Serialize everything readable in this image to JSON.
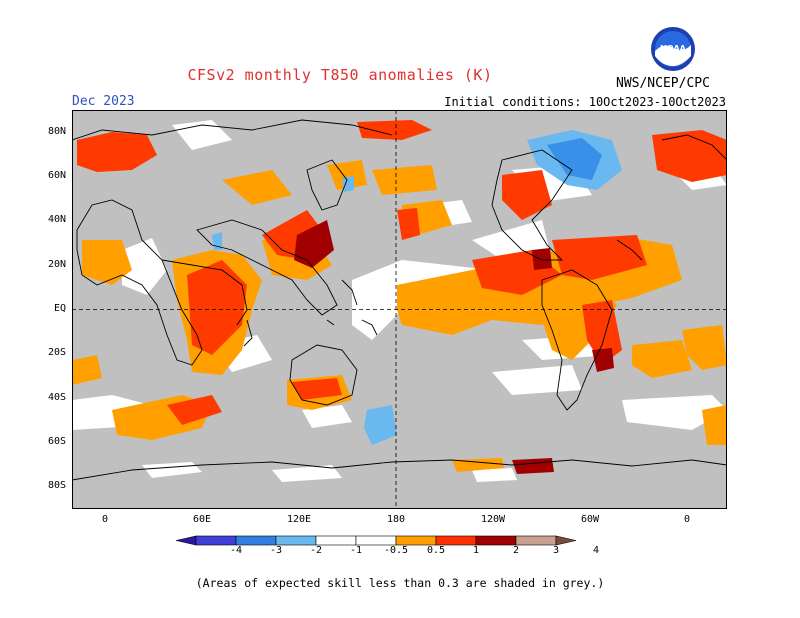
{
  "title": "CFSv2 monthly T850 anomalies (K)",
  "month": "Dec 2023",
  "initial_conditions": "Initial conditions: 10Oct2023-10Oct2023",
  "agency": "NWS/NCEP/CPC",
  "logo_text": "NOAA",
  "lat_labels": [
    "80N",
    "60N",
    "40N",
    "20N",
    "EQ",
    "20S",
    "40S",
    "60S",
    "80S"
  ],
  "lon_labels": [
    "0",
    "60E",
    "120E",
    "180",
    "120W",
    "60W",
    "0"
  ],
  "legend": {
    "labels": [
      "-4",
      "-3",
      "-2",
      "-1",
      "-0.5",
      "0.5",
      "1",
      "2",
      "3",
      "4"
    ],
    "colors": [
      "#2a18a0",
      "#4040d8",
      "#3080e0",
      "#6ab8f0",
      "#ffffff",
      "#ffffff",
      "#ffa000",
      "#ff3000",
      "#a00000",
      "#c8a090",
      "#7a4a3a"
    ]
  },
  "footnote": "(Areas of expected skill less than 0.3 are shaded in grey.)",
  "colors": {
    "grey": "#c0c0c0",
    "orange": "#ffa000",
    "red_orange": "#ff3a00",
    "dark_red": "#a00000",
    "light_blue": "#6ab8f0",
    "blue": "#3890e8",
    "title_red": "#e03030",
    "month_blue": "#3050c0"
  }
}
